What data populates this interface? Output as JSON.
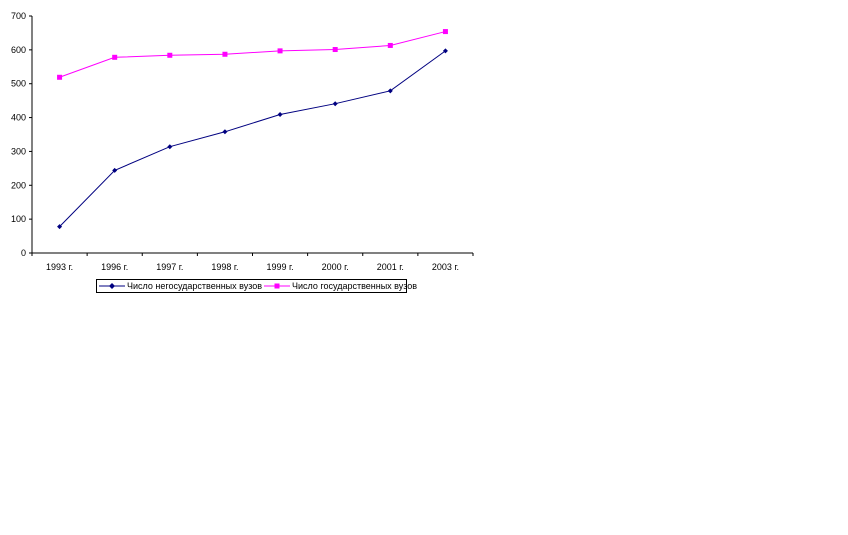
{
  "chart_data": {
    "type": "line",
    "categories": [
      "1993 г.",
      "1996 г.",
      "1997 г.",
      "1998 г.",
      "1999 г.",
      "2000 г.",
      "2001 г.",
      "2003 г."
    ],
    "series": [
      {
        "name": "Число негосударственных вузов",
        "values": [
          78,
          244,
          314,
          358,
          409,
          441,
          479,
          597
        ],
        "color": "#000080",
        "marker": "diamond"
      },
      {
        "name": "Число государственных вузов",
        "values": [
          519,
          578,
          584,
          587,
          597,
          601,
          613,
          654
        ],
        "color": "#ff00ff",
        "marker": "square"
      }
    ],
    "yticks": [
      "0",
      "100",
      "200",
      "300",
      "400",
      "500",
      "600",
      "700"
    ],
    "ylim": [
      0,
      700
    ],
    "grid": false,
    "legend_position": "bottom"
  }
}
